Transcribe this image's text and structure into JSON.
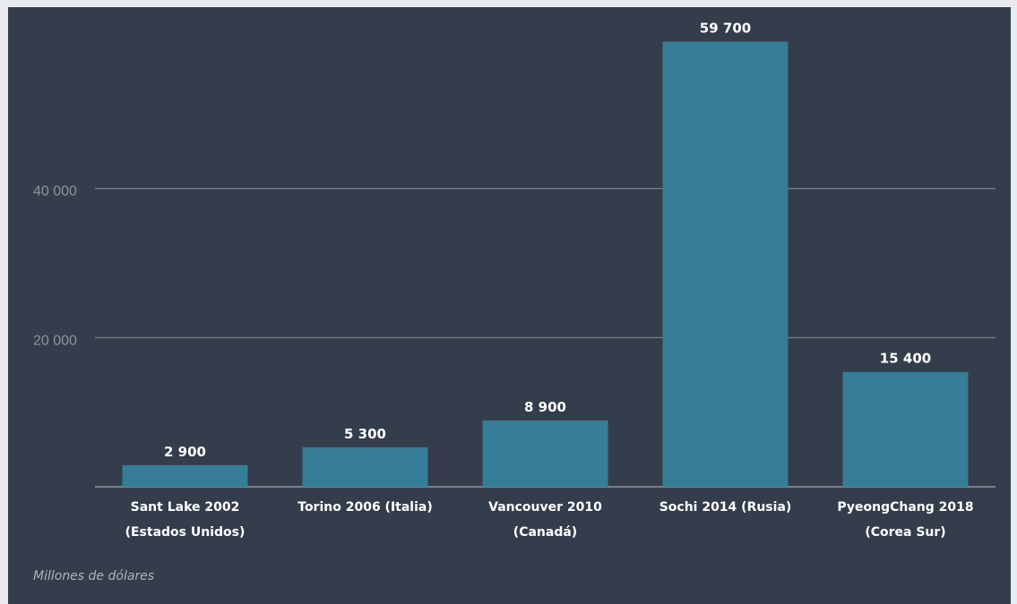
{
  "colors": {
    "page_background": "#e9eaee",
    "chart_background": "#343d4b",
    "bar": "#367d97",
    "gridline": "#7f8894",
    "baseline": "#8f97a2",
    "text": "#ffffff",
    "muted_text": "#8c939e"
  },
  "footnote": "Millones de dólares",
  "chart_data": {
    "type": "bar",
    "categories": [
      [
        "Sant Lake 2002",
        "(Estados Unidos)"
      ],
      [
        "Torino 2006 (Italia)"
      ],
      [
        "Vancouver 2010",
        "(Canadá)"
      ],
      [
        "Sochi 2014 (Rusia)"
      ],
      [
        "PyeongChang 2018",
        "(Corea Sur)"
      ]
    ],
    "values": [
      2900,
      5300,
      8900,
      59700,
      15400
    ],
    "value_labels": [
      "2 900",
      "5 300",
      "8 900",
      "59 700",
      "15 400"
    ],
    "yticks": [
      20000,
      40000
    ],
    "ytick_labels": [
      "20 000",
      "40 000"
    ],
    "ylim": [
      0,
      60000
    ],
    "grid": true,
    "title": "",
    "xlabel": "",
    "ylabel": ""
  }
}
